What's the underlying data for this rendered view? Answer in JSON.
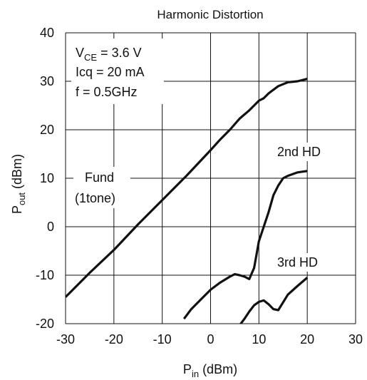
{
  "chart_data": {
    "type": "line",
    "title": "Harmonic Distortion",
    "xlabel": {
      "main": "P",
      "sub": "in",
      "unit": " (dBm)"
    },
    "ylabel": {
      "main": "P",
      "sub": "out",
      "unit": " (dBm)"
    },
    "xlim": [
      -30,
      30
    ],
    "ylim": [
      -20,
      40
    ],
    "xticks": [
      -30,
      -20,
      -10,
      0,
      10,
      20,
      30
    ],
    "yticks": [
      -20,
      -10,
      0,
      10,
      20,
      30,
      40
    ],
    "grid": true,
    "conditions": {
      "vce_main": "V",
      "vce_sub": "CE",
      "vce_rest": " = 3.6 V",
      "icq": "Icq = 20 mA",
      "freq": "f = 0.5GHz"
    },
    "series": [
      {
        "name": "Fund (1tone)",
        "x": [
          -30,
          -25,
          -20,
          -15,
          -10,
          -5,
          0,
          2,
          4,
          6,
          8,
          10,
          11,
          12,
          14,
          16,
          18,
          20
        ],
        "y": [
          -14.5,
          -9.5,
          -4.8,
          0.5,
          5.5,
          10.5,
          15.8,
          18,
          20,
          22.3,
          24,
          26,
          26.5,
          27.5,
          29,
          29.8,
          30,
          30.5
        ]
      },
      {
        "name": "2nd HD",
        "x": [
          -5.5,
          -4,
          -2,
          0,
          2,
          4,
          5,
          6,
          7,
          8,
          9,
          10,
          11,
          12,
          13,
          14,
          15,
          16,
          18,
          20
        ],
        "y": [
          -19,
          -17,
          -15,
          -13,
          -11.5,
          -10.3,
          -9.8,
          -10,
          -10.3,
          -10.8,
          -8.5,
          -3,
          0,
          3,
          6.5,
          8.5,
          10,
          10.5,
          11.2,
          11.5
        ]
      },
      {
        "name": "3rd HD",
        "x": [
          5.5,
          7,
          8,
          9,
          10,
          11,
          12,
          13,
          14,
          16,
          18,
          20
        ],
        "y": [
          -21,
          -19,
          -17.5,
          -16.2,
          -15.5,
          -15.2,
          -16,
          -17,
          -17.2,
          -14,
          -12.2,
          -10.5
        ]
      }
    ],
    "labels": {
      "fund_line1": "Fund",
      "fund_line2": "(1tone)",
      "second_hd": "2nd HD",
      "third_hd": "3rd HD"
    }
  }
}
